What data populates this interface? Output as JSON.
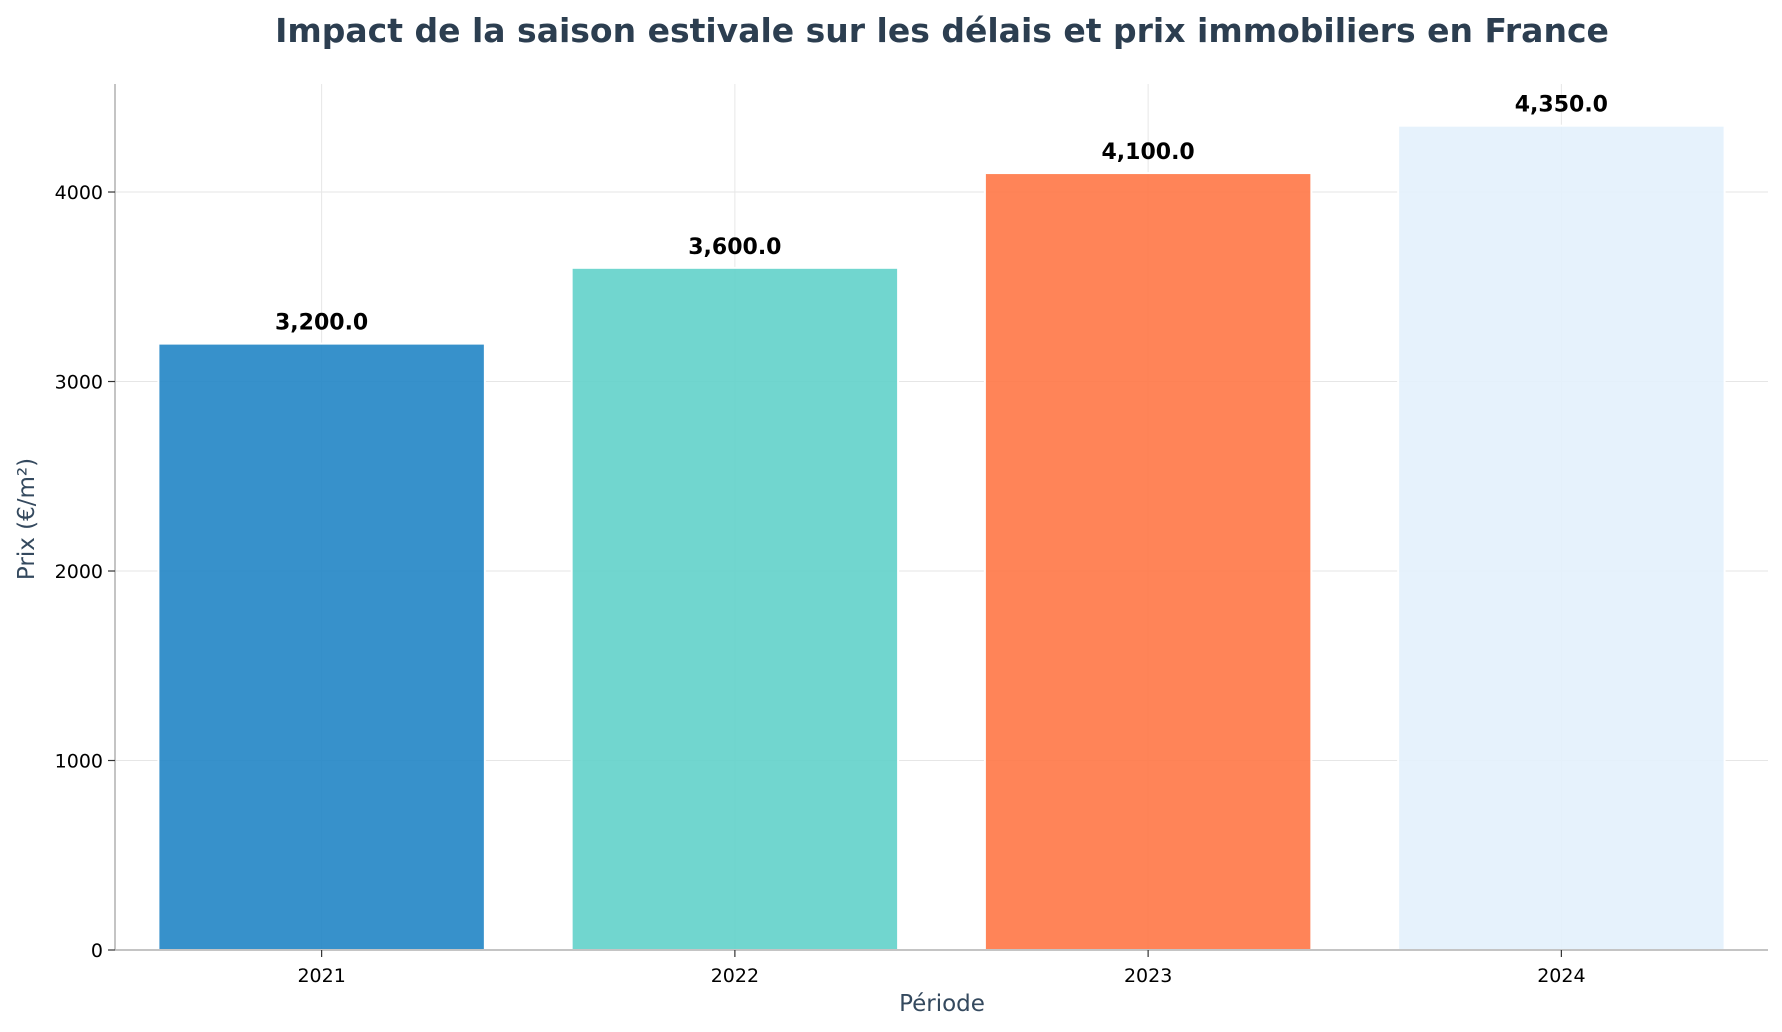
{
  "chart_data": {
    "type": "bar",
    "title": "Impact de la saison estivale sur les délais et prix immobiliers en France",
    "xlabel": "Période",
    "ylabel": "Prix (€/m²)",
    "categories": [
      "2021",
      "2022",
      "2023",
      "2024"
    ],
    "values": [
      3200,
      3600,
      4100,
      4350
    ],
    "value_labels": [
      "3,200.0",
      "3,600.0",
      "4,100.0",
      "4,350.0"
    ],
    "bar_colors": [
      "#2185c5",
      "#62d2ca",
      "#ff7746",
      "#e3f1fc"
    ],
    "ylim": [
      0,
      4570
    ],
    "yticks": [
      0,
      1000,
      2000,
      3000,
      4000
    ],
    "ytick_labels": [
      "0",
      "1000",
      "2000",
      "3000",
      "4000"
    ],
    "grid": true,
    "legend": "none"
  },
  "colors": {
    "title": "#2c3e50",
    "axis_label": "#34495e",
    "grid": "#e6e6e6",
    "spine": "#b0b0b0"
  }
}
